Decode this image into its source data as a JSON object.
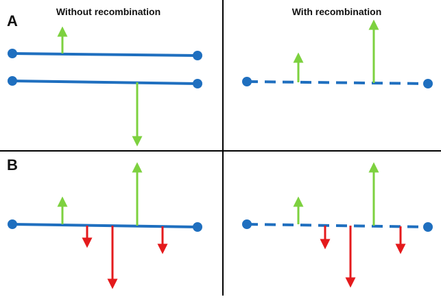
{
  "panels": {
    "A": {
      "letter": "A"
    },
    "B": {
      "letter": "B"
    }
  },
  "columns": {
    "left_title": "Without recombination",
    "right_title": "With recombination"
  },
  "colors": {
    "chromosome": "#1f6fbf",
    "beneficial_arrow": "#7dd13f",
    "deleterious_arrow": "#e41a1c",
    "divider": "#000000"
  },
  "icons": {
    "up_arrow": "beneficial-mutation-arrow-icon",
    "down_arrow": "deleterious-mutation-arrow-icon"
  }
}
